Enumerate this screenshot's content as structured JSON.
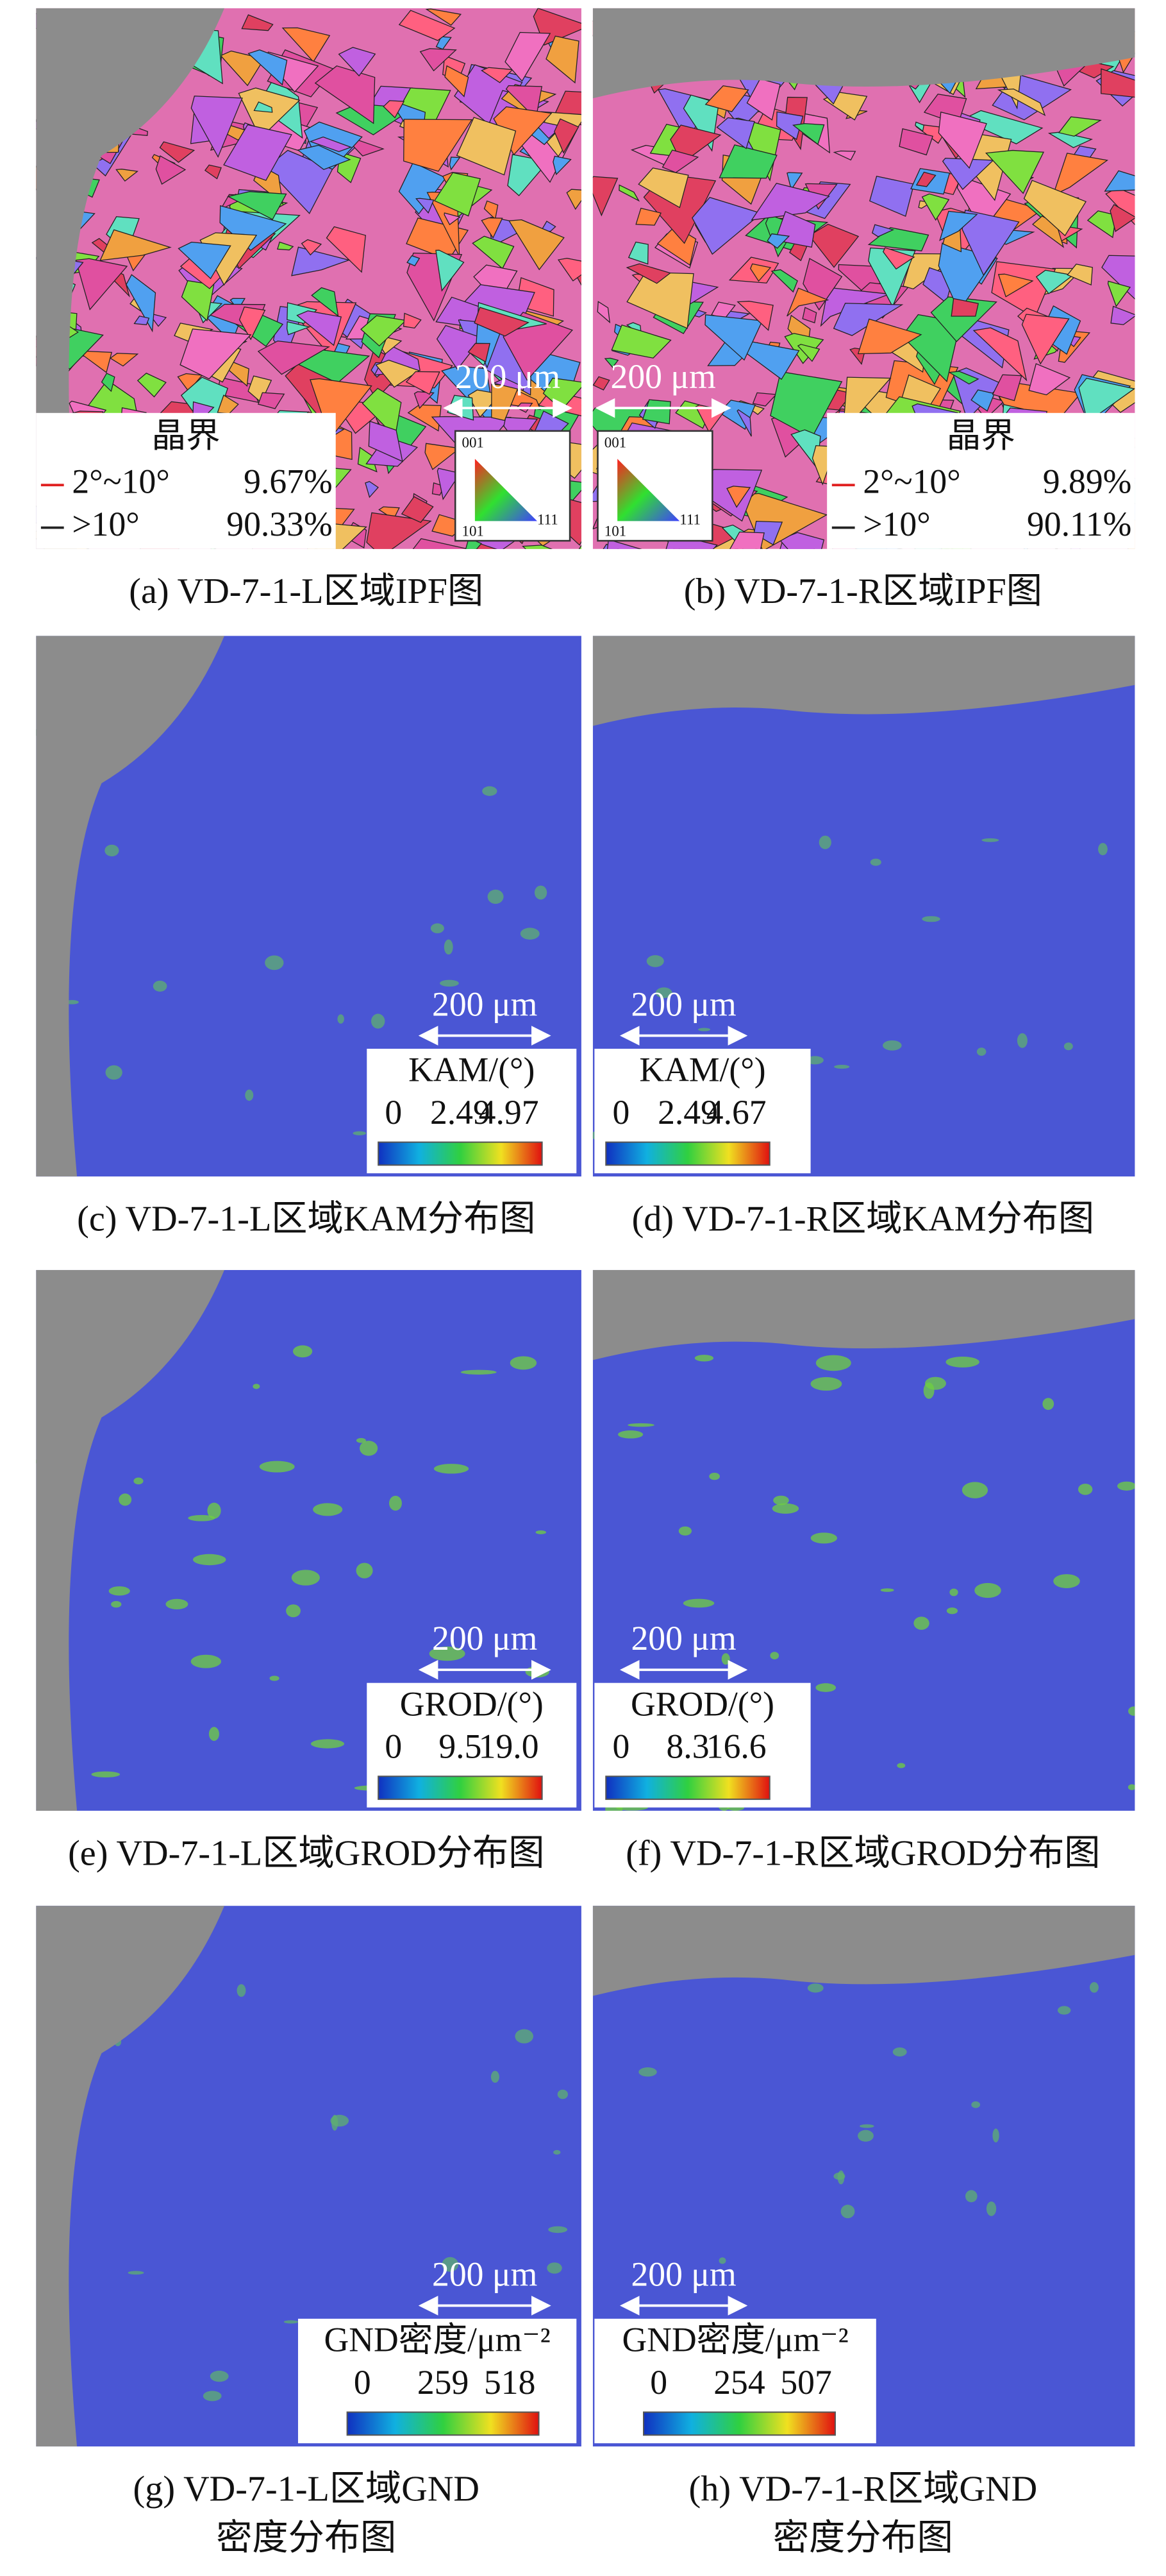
{
  "panels": [
    {
      "caption": [
        "(a) VD-7-1-L区域IPF图"
      ],
      "scale_bar": "200 μm",
      "legend": {
        "title": "晶界",
        "rows": [
          {
            "range": "2°~10°",
            "value": "9.67%"
          },
          {
            "range": ">10°",
            "value": "90.33%"
          }
        ]
      },
      "ipf_key": [
        "001",
        "101",
        "111"
      ]
    },
    {
      "caption": [
        "(b) VD-7-1-R区域IPF图"
      ],
      "scale_bar": "200 μm",
      "legend": {
        "title": "晶界",
        "rows": [
          {
            "range": "2°~10°",
            "value": "9.89%"
          },
          {
            "range": ">10°",
            "value": "90.11%"
          }
        ]
      },
      "ipf_key": [
        "001",
        "101",
        "111"
      ]
    },
    {
      "caption": [
        "(c) VD-7-1-L区域KAM分布图"
      ],
      "scale_bar": "200 μm",
      "colorbar": {
        "title": "KAM/(°)",
        "ticks": [
          "0",
          "2.49",
          "4.97"
        ]
      }
    },
    {
      "caption": [
        "(d) VD-7-1-R区域KAM分布图"
      ],
      "scale_bar": "200 μm",
      "colorbar": {
        "title": "KAM/(°)",
        "ticks": [
          "0",
          "2.49",
          "4.67"
        ]
      }
    },
    {
      "caption": [
        "(e) VD-7-1-L区域GROD分布图"
      ],
      "scale_bar": "200 μm",
      "colorbar": {
        "title": "GROD/(°)",
        "ticks": [
          "0",
          "9.5",
          "19.0"
        ]
      }
    },
    {
      "caption": [
        "(f) VD-7-1-R区域GROD分布图"
      ],
      "scale_bar": "200 μm",
      "colorbar": {
        "title": "GROD/(°)",
        "ticks": [
          "0",
          "8.3",
          "16.6"
        ]
      }
    },
    {
      "caption": [
        "(g) VD-7-1-L区域GND",
        "密度分布图"
      ],
      "scale_bar": "200 μm",
      "colorbar": {
        "title": "GND密度/μm⁻²",
        "ticks": [
          "0",
          "259",
          "518"
        ]
      }
    },
    {
      "caption": [
        "(h) VD-7-1-R区域GND",
        "密度分布图"
      ],
      "scale_bar": "200 μm",
      "colorbar": {
        "title": "GND密度/μm⁻²",
        "ticks": [
          "0",
          "254",
          "507"
        ]
      }
    }
  ]
}
